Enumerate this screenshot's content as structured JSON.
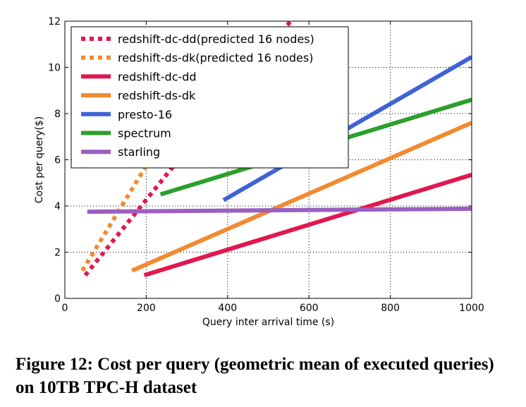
{
  "caption": "Figure 12: Cost per query (geometric mean of executed queries) on 10TB TPC-H dataset",
  "chart_data": {
    "type": "line",
    "title": "",
    "xlabel": "Query inter arrival time (s)",
    "ylabel": "Cost per query($)",
    "xlim": [
      0,
      1000
    ],
    "ylim": [
      0,
      12
    ],
    "xticks": [
      0,
      200,
      400,
      600,
      800,
      1000
    ],
    "yticks": [
      0,
      2,
      4,
      6,
      8,
      10,
      12
    ],
    "grid": true,
    "legend_position": "top-left",
    "series": [
      {
        "name": "redshift-dc-dd(predicted 16 nodes)",
        "color": "#e0184f",
        "style": "dotted",
        "x": [
          50,
          555
        ],
        "y": [
          1.0,
          12.0
        ]
      },
      {
        "name": "redshift-ds-dk(predicted 16 nodes)",
        "color": "#f28a30",
        "style": "dotted",
        "x": [
          43,
          240
        ],
        "y": [
          1.2,
          6.9
        ]
      },
      {
        "name": "redshift-dc-dd",
        "color": "#e0184f",
        "style": "solid",
        "x": [
          195,
          1000
        ],
        "y": [
          1.0,
          5.35
        ]
      },
      {
        "name": "redshift-ds-dk",
        "color": "#f28a30",
        "style": "solid",
        "x": [
          165,
          1000
        ],
        "y": [
          1.2,
          7.6
        ]
      },
      {
        "name": "presto-16",
        "color": "#3f63d6",
        "style": "solid",
        "x": [
          390,
          1000
        ],
        "y": [
          4.25,
          10.45
        ]
      },
      {
        "name": "spectrum",
        "color": "#2ca02c",
        "style": "solid",
        "x": [
          235,
          1000
        ],
        "y": [
          4.5,
          8.6
        ]
      },
      {
        "name": "starling",
        "color": "#9b5fc0",
        "style": "solid",
        "x": [
          55,
          1000
        ],
        "y": [
          3.75,
          3.88
        ]
      }
    ]
  }
}
